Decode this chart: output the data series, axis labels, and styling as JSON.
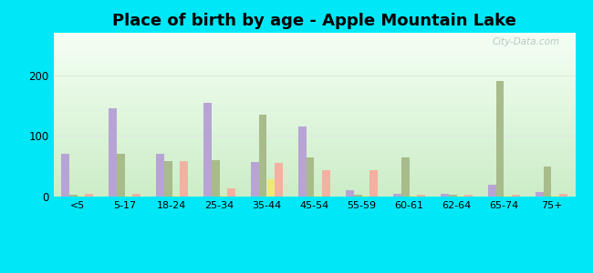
{
  "title": "Place of birth by age - Apple Mountain Lake",
  "categories": [
    "<5",
    "5-17",
    "18-24",
    "25-34",
    "35-44",
    "45-54",
    "55-59",
    "60-61",
    "62-64",
    "65-74",
    "75+"
  ],
  "series": {
    "Born in state of residence": {
      "color": "#b8a4d4",
      "values": [
        70,
        145,
        70,
        155,
        57,
        115,
        10,
        5,
        5,
        20,
        8
      ]
    },
    "Born in other state": {
      "color": "#a8bb8a",
      "values": [
        3,
        70,
        58,
        60,
        135,
        65,
        3,
        65,
        3,
        190,
        50
      ]
    },
    "Native, outside of US": {
      "color": "#eee87a",
      "values": [
        2,
        2,
        2,
        2,
        28,
        2,
        2,
        2,
        2,
        2,
        2
      ]
    },
    "Foreign-born": {
      "color": "#f4b0a0",
      "values": [
        5,
        5,
        58,
        13,
        55,
        43,
        43,
        3,
        3,
        3,
        5
      ]
    }
  },
  "ylim": [
    0,
    270
  ],
  "yticks": [
    0,
    100,
    200
  ],
  "fig_bg_color": "#00e8f8",
  "bar_width": 0.17,
  "title_fontsize": 13,
  "legend_fontsize": 9,
  "watermark": "City-Data.com",
  "grid_color": "#e0e8e0",
  "bg_top": "#f5fdf5",
  "bg_bottom": "#c8e8c0"
}
